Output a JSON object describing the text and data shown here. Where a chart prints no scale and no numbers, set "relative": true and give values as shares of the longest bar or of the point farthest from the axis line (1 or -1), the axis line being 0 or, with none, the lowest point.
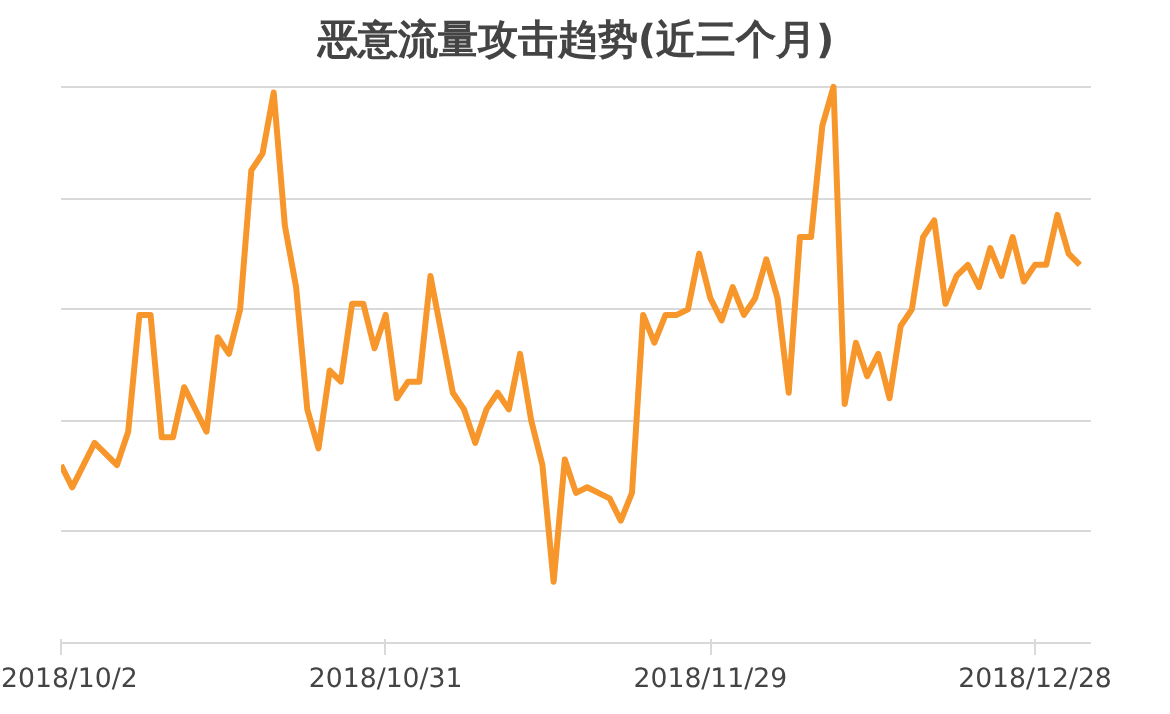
{
  "chart_data": {
    "type": "line",
    "title": "恶意流量攻击趋势(近三个月)",
    "relative": true,
    "x": [
      "2018-10-02",
      "2018-10-03",
      "2018-10-05",
      "2018-10-07",
      "2018-10-08",
      "2018-10-09",
      "2018-10-10",
      "2018-10-11",
      "2018-10-12",
      "2018-10-13",
      "2018-10-15",
      "2018-10-16",
      "2018-10-17",
      "2018-10-18",
      "2018-10-19",
      "2018-10-20",
      "2018-10-21",
      "2018-10-22",
      "2018-10-23",
      "2018-10-24",
      "2018-10-25",
      "2018-10-26",
      "2018-10-27",
      "2018-10-28",
      "2018-10-29",
      "2018-10-30",
      "2018-10-31",
      "2018-11-01",
      "2018-11-02",
      "2018-11-03",
      "2018-11-04",
      "2018-11-06",
      "2018-11-07",
      "2018-11-08",
      "2018-11-09",
      "2018-11-10",
      "2018-11-11",
      "2018-11-12",
      "2018-11-13",
      "2018-11-14",
      "2018-11-15",
      "2018-11-16",
      "2018-11-17",
      "2018-11-18",
      "2018-11-19",
      "2018-11-20",
      "2018-11-21",
      "2018-11-22",
      "2018-11-23",
      "2018-11-24",
      "2018-11-25",
      "2018-11-26",
      "2018-11-27",
      "2018-11-28",
      "2018-11-29",
      "2018-11-30",
      "2018-12-01",
      "2018-12-02",
      "2018-12-03",
      "2018-12-04",
      "2018-12-05",
      "2018-12-06",
      "2018-12-07",
      "2018-12-08",
      "2018-12-09",
      "2018-12-10",
      "2018-12-11",
      "2018-12-12",
      "2018-12-13",
      "2018-12-14",
      "2018-12-15",
      "2018-12-16",
      "2018-12-17",
      "2018-12-18",
      "2018-12-19",
      "2018-12-20",
      "2018-12-21",
      "2018-12-22",
      "2018-12-23",
      "2018-12-24",
      "2018-12-25",
      "2018-12-26",
      "2018-12-27",
      "2018-12-28",
      "2018-12-29",
      "2018-12-30",
      "2018-12-31",
      "2019-01-01"
    ],
    "series": [
      {
        "color": "#f7962b",
        "values": [
          0.32,
          0.28,
          0.36,
          0.32,
          0.38,
          0.59,
          0.59,
          0.37,
          0.37,
          0.46,
          0.38,
          0.55,
          0.52,
          0.6,
          0.85,
          0.88,
          0.99,
          0.75,
          0.64,
          0.42,
          0.35,
          0.49,
          0.47,
          0.61,
          0.61,
          0.53,
          0.59,
          0.44,
          0.47,
          0.47,
          0.66,
          0.45,
          0.42,
          0.36,
          0.42,
          0.45,
          0.42,
          0.52,
          0.4,
          0.32,
          0.11,
          0.33,
          0.27,
          0.28,
          0.27,
          0.26,
          0.22,
          0.27,
          0.59,
          0.54,
          0.59,
          0.59,
          0.6,
          0.7,
          0.62,
          0.58,
          0.64,
          0.59,
          0.62,
          0.69,
          0.62,
          0.45,
          0.73,
          0.73,
          0.93,
          1.0,
          0.43,
          0.54,
          0.48,
          0.52,
          0.44,
          0.57,
          0.6,
          0.73,
          0.76,
          0.61,
          0.66,
          0.68,
          0.64,
          0.71,
          0.66,
          0.73,
          0.65,
          0.68,
          0.68,
          0.77,
          0.7,
          0.68
        ]
      }
    ],
    "xlim": [
      "2018-10-02",
      "2019-01-02"
    ],
    "xticks": [
      {
        "value": "2018-10-02",
        "label": "2018/10/2"
      },
      {
        "value": "2018-10-31",
        "label": "2018/10/31"
      },
      {
        "value": "2018-11-29",
        "label": "2018/11/29"
      },
      {
        "value": "2018-12-28",
        "label": "2018/12/28"
      }
    ],
    "grid": "y",
    "tick_labels": "x",
    "line_style": "solid"
  }
}
